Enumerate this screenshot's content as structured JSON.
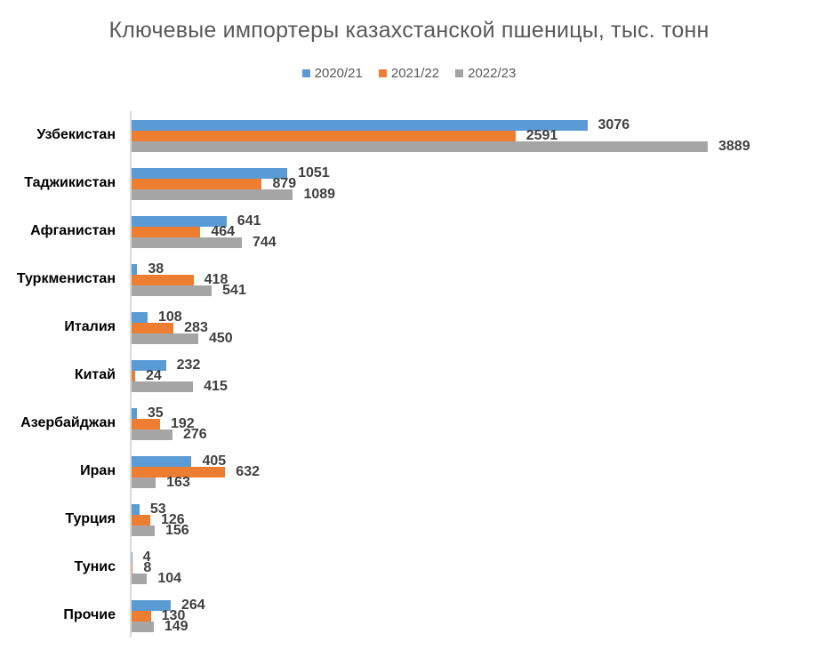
{
  "chart_data": {
    "type": "bar",
    "orientation": "horizontal",
    "title": "Ключевые импортеры казахстанской пшеницы, тыс. тонн",
    "xlabel": "",
    "ylabel": "",
    "legend_position": "top",
    "grid": false,
    "categories": [
      "Узбекистан",
      "Таджикистан",
      "Афганистан",
      "Туркменистан",
      "Италия",
      "Китай",
      "Азербайджан",
      "Иран",
      "Турция",
      "Тунис",
      "Прочие"
    ],
    "series": [
      {
        "name": "2020/21",
        "color": "#5b9bd5",
        "values": [
          3076,
          1051,
          641,
          38,
          108,
          232,
          35,
          405,
          53,
          4,
          264
        ]
      },
      {
        "name": "2021/22",
        "color": "#ed7d31",
        "values": [
          2591,
          879,
          464,
          418,
          283,
          24,
          192,
          632,
          126,
          8,
          130
        ]
      },
      {
        "name": "2022/23",
        "color": "#a5a5a5",
        "values": [
          3889,
          1089,
          744,
          541,
          450,
          415,
          276,
          163,
          156,
          104,
          149
        ]
      }
    ],
    "xlim": [
      0,
      3889
    ]
  },
  "title": "Ключевые импортеры казахстанской пшеницы, тыс. тонн",
  "legend": [
    {
      "label": "2020/21",
      "color": "#5b9bd5"
    },
    {
      "label": "2021/22",
      "color": "#ed7d31"
    },
    {
      "label": "2022/23",
      "color": "#a5a5a5"
    }
  ]
}
